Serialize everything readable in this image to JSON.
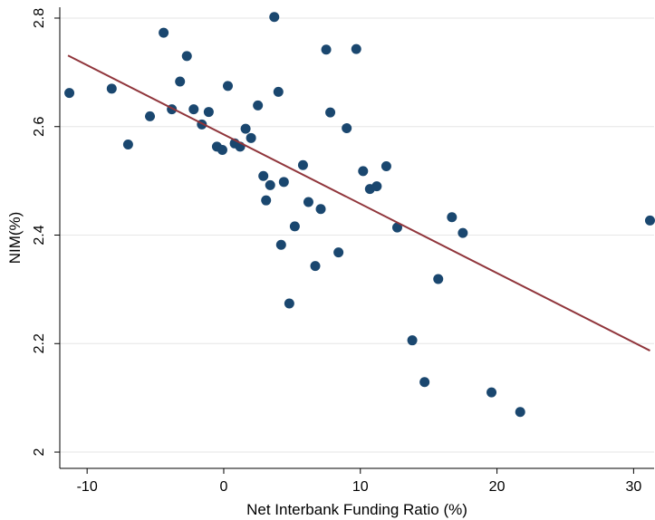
{
  "chart_data": {
    "type": "scatter",
    "title": "",
    "xlabel": "Net Interbank Funding Ratio (%)",
    "ylabel": "NIM(%)",
    "xlim": [
      -12,
      31.5
    ],
    "ylim": [
      1.97,
      2.82
    ],
    "x_ticks": [
      -10,
      0,
      10,
      20,
      30
    ],
    "y_ticks": [
      2,
      2.2,
      2.4,
      2.6,
      2.8
    ],
    "x_tick_labels": [
      "-10",
      "0",
      "10",
      "20",
      "30"
    ],
    "y_tick_labels": [
      "2",
      "2.2",
      "2.4",
      "2.6",
      "2.8"
    ],
    "grid": "horizontal",
    "point_color": "#1a476f",
    "line_color": "#90353b",
    "points": [
      {
        "x": -11.3,
        "y": 2.662
      },
      {
        "x": -8.2,
        "y": 2.67
      },
      {
        "x": -7.0,
        "y": 2.567
      },
      {
        "x": -5.4,
        "y": 2.619
      },
      {
        "x": -4.4,
        "y": 2.773
      },
      {
        "x": -3.8,
        "y": 2.632
      },
      {
        "x": -3.2,
        "y": 2.683
      },
      {
        "x": -2.7,
        "y": 2.73
      },
      {
        "x": -2.2,
        "y": 2.632
      },
      {
        "x": -1.6,
        "y": 2.604
      },
      {
        "x": -1.1,
        "y": 2.627
      },
      {
        "x": -0.5,
        "y": 2.563
      },
      {
        "x": -0.1,
        "y": 2.557
      },
      {
        "x": 0.3,
        "y": 2.675
      },
      {
        "x": 0.8,
        "y": 2.569
      },
      {
        "x": 1.2,
        "y": 2.563
      },
      {
        "x": 1.6,
        "y": 2.596
      },
      {
        "x": 2.0,
        "y": 2.579
      },
      {
        "x": 2.5,
        "y": 2.639
      },
      {
        "x": 2.9,
        "y": 2.509
      },
      {
        "x": 3.1,
        "y": 2.464
      },
      {
        "x": 3.4,
        "y": 2.492
      },
      {
        "x": 3.7,
        "y": 2.802
      },
      {
        "x": 4.0,
        "y": 2.664
      },
      {
        "x": 4.2,
        "y": 2.382
      },
      {
        "x": 4.4,
        "y": 2.498
      },
      {
        "x": 4.8,
        "y": 2.274
      },
      {
        "x": 5.2,
        "y": 2.416
      },
      {
        "x": 5.8,
        "y": 2.529
      },
      {
        "x": 6.2,
        "y": 2.461
      },
      {
        "x": 6.7,
        "y": 2.343
      },
      {
        "x": 7.1,
        "y": 2.448
      },
      {
        "x": 7.5,
        "y": 2.742
      },
      {
        "x": 7.8,
        "y": 2.626
      },
      {
        "x": 8.4,
        "y": 2.368
      },
      {
        "x": 9.0,
        "y": 2.597
      },
      {
        "x": 9.7,
        "y": 2.743
      },
      {
        "x": 10.2,
        "y": 2.518
      },
      {
        "x": 10.7,
        "y": 2.485
      },
      {
        "x": 11.2,
        "y": 2.49
      },
      {
        "x": 11.9,
        "y": 2.527
      },
      {
        "x": 12.7,
        "y": 2.414
      },
      {
        "x": 13.8,
        "y": 2.206
      },
      {
        "x": 14.7,
        "y": 2.129
      },
      {
        "x": 15.7,
        "y": 2.319
      },
      {
        "x": 16.7,
        "y": 2.433
      },
      {
        "x": 17.5,
        "y": 2.404
      },
      {
        "x": 19.6,
        "y": 2.11
      },
      {
        "x": 21.7,
        "y": 2.074
      },
      {
        "x": 31.2,
        "y": 2.427
      }
    ],
    "fit_line": {
      "x": [
        -11.4,
        31.2
      ],
      "y": [
        2.731,
        2.187
      ]
    }
  }
}
